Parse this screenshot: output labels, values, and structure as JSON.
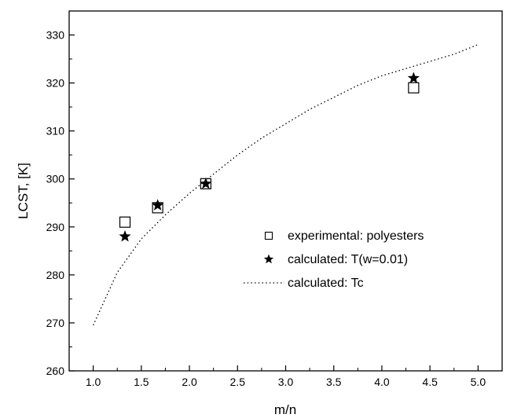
{
  "chart_data": {
    "type": "scatter",
    "xlabel": "m/n",
    "ylabel": "LCST, [K]",
    "xlim": [
      0.75,
      5.25
    ],
    "ylim": [
      260,
      335
    ],
    "x_ticks": [
      "1.0",
      "1.5",
      "2.0",
      "2.5",
      "3.0",
      "3.5",
      "4.0",
      "4.5",
      "5.0"
    ],
    "y_ticks": [
      "260",
      "270",
      "280",
      "290",
      "300",
      "310",
      "320",
      "330"
    ],
    "grid": false,
    "legend_position": "center-right",
    "series": [
      {
        "name": "experimental: polyesters",
        "marker": "open-square",
        "x": [
          1.33,
          1.67,
          2.17,
          4.33
        ],
        "y": [
          291,
          294,
          299,
          319
        ]
      },
      {
        "name": "calculated: T(w=0.01)",
        "marker": "filled-star",
        "x": [
          1.33,
          1.67,
          2.17,
          4.33
        ],
        "y": [
          288,
          294.5,
          299,
          321
        ]
      },
      {
        "name": "calculated: Tc",
        "marker": "dotted-line",
        "x": [
          1.0,
          1.25,
          1.5,
          1.75,
          2.0,
          2.25,
          2.5,
          2.75,
          3.0,
          3.25,
          3.5,
          3.75,
          4.0,
          4.25,
          4.5,
          4.75,
          5.0
        ],
        "y": [
          269.5,
          280.5,
          287.5,
          292.5,
          297,
          301,
          305,
          308.5,
          311.5,
          314.5,
          317,
          319.5,
          321.5,
          323,
          324.5,
          326,
          328
        ]
      }
    ]
  }
}
